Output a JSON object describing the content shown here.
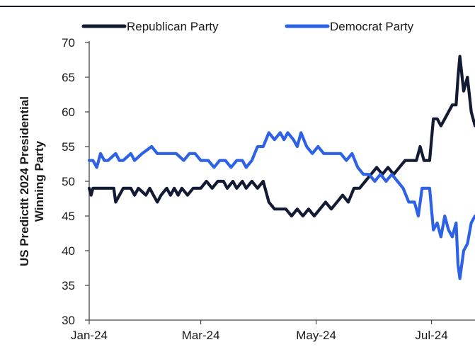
{
  "chart_data": {
    "type": "line",
    "title": "",
    "ylabel_lines": [
      "US PredictIt 2024 Presidential",
      "Winning Party"
    ],
    "xlabel": "",
    "ylim": [
      30,
      70
    ],
    "yticks": [
      30,
      35,
      40,
      45,
      50,
      55,
      60,
      65,
      70
    ],
    "x_start": "2024-01-02",
    "x_end": "2024-07-24",
    "xticks": [
      {
        "date": "2024-01-01",
        "label": "Jan-24"
      },
      {
        "date": "2024-03-01",
        "label": "Mar-24"
      },
      {
        "date": "2024-05-01",
        "label": "May-24"
      },
      {
        "date": "2024-07-01",
        "label": "Jul-24"
      }
    ],
    "grid": false,
    "legend_position": "top",
    "series": [
      {
        "name": "Republican Party",
        "color": "#131a33",
        "points": [
          [
            "2024-01-02",
            49
          ],
          [
            "2024-01-03",
            48
          ],
          [
            "2024-01-04",
            49
          ],
          [
            "2024-01-08",
            49
          ],
          [
            "2024-01-12",
            49
          ],
          [
            "2024-01-15",
            49
          ],
          [
            "2024-01-16",
            47
          ],
          [
            "2024-01-18",
            48
          ],
          [
            "2024-01-20",
            49
          ],
          [
            "2024-01-24",
            49
          ],
          [
            "2024-01-26",
            48
          ],
          [
            "2024-01-28",
            49
          ],
          [
            "2024-02-01",
            48
          ],
          [
            "2024-02-03",
            49
          ],
          [
            "2024-02-05",
            48
          ],
          [
            "2024-02-07",
            47
          ],
          [
            "2024-02-09",
            48
          ],
          [
            "2024-02-12",
            49
          ],
          [
            "2024-02-14",
            48
          ],
          [
            "2024-02-16",
            49
          ],
          [
            "2024-02-18",
            48
          ],
          [
            "2024-02-20",
            49
          ],
          [
            "2024-02-23",
            48
          ],
          [
            "2024-02-26",
            49
          ],
          [
            "2024-03-01",
            49
          ],
          [
            "2024-03-04",
            50
          ],
          [
            "2024-03-07",
            49
          ],
          [
            "2024-03-10",
            50
          ],
          [
            "2024-03-13",
            50
          ],
          [
            "2024-03-15",
            49
          ],
          [
            "2024-03-18",
            50
          ],
          [
            "2024-03-20",
            49
          ],
          [
            "2024-03-23",
            50
          ],
          [
            "2024-03-25",
            49
          ],
          [
            "2024-03-28",
            50
          ],
          [
            "2024-03-31",
            49
          ],
          [
            "2024-04-03",
            50
          ],
          [
            "2024-04-06",
            47
          ],
          [
            "2024-04-09",
            46
          ],
          [
            "2024-04-12",
            46
          ],
          [
            "2024-04-15",
            46
          ],
          [
            "2024-04-18",
            45
          ],
          [
            "2024-04-21",
            46
          ],
          [
            "2024-04-24",
            45
          ],
          [
            "2024-04-27",
            46
          ],
          [
            "2024-04-30",
            45
          ],
          [
            "2024-05-03",
            46
          ],
          [
            "2024-05-06",
            47
          ],
          [
            "2024-05-09",
            46
          ],
          [
            "2024-05-12",
            47
          ],
          [
            "2024-05-15",
            48
          ],
          [
            "2024-05-18",
            47
          ],
          [
            "2024-05-21",
            49
          ],
          [
            "2024-05-24",
            49
          ],
          [
            "2024-05-27",
            50
          ],
          [
            "2024-05-30",
            51
          ],
          [
            "2024-06-02",
            52
          ],
          [
            "2024-06-05",
            51
          ],
          [
            "2024-06-08",
            52
          ],
          [
            "2024-06-11",
            51
          ],
          [
            "2024-06-14",
            52
          ],
          [
            "2024-06-17",
            53
          ],
          [
            "2024-06-20",
            53
          ],
          [
            "2024-06-23",
            53
          ],
          [
            "2024-06-25",
            55
          ],
          [
            "2024-06-27",
            53
          ],
          [
            "2024-06-30",
            53
          ],
          [
            "2024-07-02",
            59
          ],
          [
            "2024-07-04",
            59
          ],
          [
            "2024-07-06",
            58
          ],
          [
            "2024-07-08",
            59
          ],
          [
            "2024-07-10",
            60
          ],
          [
            "2024-07-12",
            61
          ],
          [
            "2024-07-14",
            61
          ],
          [
            "2024-07-15",
            65
          ],
          [
            "2024-07-16",
            68
          ],
          [
            "2024-07-18",
            63
          ],
          [
            "2024-07-20",
            65
          ],
          [
            "2024-07-22",
            60
          ],
          [
            "2024-07-24",
            58
          ]
        ]
      },
      {
        "name": "Democrat Party",
        "color": "#2e62e6",
        "points": [
          [
            "2024-01-02",
            53
          ],
          [
            "2024-01-04",
            53
          ],
          [
            "2024-01-06",
            52
          ],
          [
            "2024-01-08",
            54
          ],
          [
            "2024-01-10",
            53
          ],
          [
            "2024-01-12",
            53
          ],
          [
            "2024-01-16",
            54
          ],
          [
            "2024-01-18",
            53
          ],
          [
            "2024-01-20",
            53
          ],
          [
            "2024-01-24",
            54
          ],
          [
            "2024-01-26",
            53
          ],
          [
            "2024-01-30",
            54
          ],
          [
            "2024-02-04",
            55
          ],
          [
            "2024-02-07",
            54
          ],
          [
            "2024-02-12",
            54
          ],
          [
            "2024-02-17",
            54
          ],
          [
            "2024-02-21",
            53
          ],
          [
            "2024-02-24",
            54
          ],
          [
            "2024-02-27",
            54
          ],
          [
            "2024-03-01",
            53
          ],
          [
            "2024-03-05",
            53
          ],
          [
            "2024-03-08",
            52
          ],
          [
            "2024-03-11",
            53
          ],
          [
            "2024-03-14",
            53
          ],
          [
            "2024-03-17",
            52
          ],
          [
            "2024-03-20",
            53
          ],
          [
            "2024-03-23",
            53
          ],
          [
            "2024-03-25",
            52
          ],
          [
            "2024-03-28",
            53
          ],
          [
            "2024-03-31",
            55
          ],
          [
            "2024-04-03",
            55
          ],
          [
            "2024-04-06",
            57
          ],
          [
            "2024-04-09",
            56
          ],
          [
            "2024-04-12",
            57
          ],
          [
            "2024-04-14",
            56
          ],
          [
            "2024-04-16",
            57
          ],
          [
            "2024-04-19",
            56
          ],
          [
            "2024-04-21",
            55
          ],
          [
            "2024-04-23",
            57
          ],
          [
            "2024-04-26",
            55
          ],
          [
            "2024-04-29",
            54
          ],
          [
            "2024-05-02",
            55
          ],
          [
            "2024-05-05",
            54
          ],
          [
            "2024-05-08",
            54
          ],
          [
            "2024-05-11",
            54
          ],
          [
            "2024-05-14",
            54
          ],
          [
            "2024-05-17",
            53
          ],
          [
            "2024-05-20",
            54
          ],
          [
            "2024-05-23",
            52
          ],
          [
            "2024-05-26",
            51
          ],
          [
            "2024-05-29",
            51
          ],
          [
            "2024-06-01",
            50
          ],
          [
            "2024-06-04",
            51
          ],
          [
            "2024-06-07",
            50
          ],
          [
            "2024-06-10",
            51
          ],
          [
            "2024-06-13",
            50
          ],
          [
            "2024-06-16",
            49
          ],
          [
            "2024-06-19",
            47
          ],
          [
            "2024-06-22",
            47
          ],
          [
            "2024-06-24",
            45
          ],
          [
            "2024-06-26",
            49
          ],
          [
            "2024-06-28",
            49
          ],
          [
            "2024-06-30",
            49
          ],
          [
            "2024-07-02",
            43
          ],
          [
            "2024-07-04",
            44
          ],
          [
            "2024-07-06",
            42
          ],
          [
            "2024-07-08",
            45
          ],
          [
            "2024-07-10",
            43
          ],
          [
            "2024-07-12",
            42
          ],
          [
            "2024-07-14",
            44
          ],
          [
            "2024-07-15",
            38
          ],
          [
            "2024-07-16",
            36
          ],
          [
            "2024-07-18",
            40
          ],
          [
            "2024-07-20",
            41
          ],
          [
            "2024-07-22",
            44
          ],
          [
            "2024-07-24",
            45
          ]
        ]
      }
    ]
  }
}
